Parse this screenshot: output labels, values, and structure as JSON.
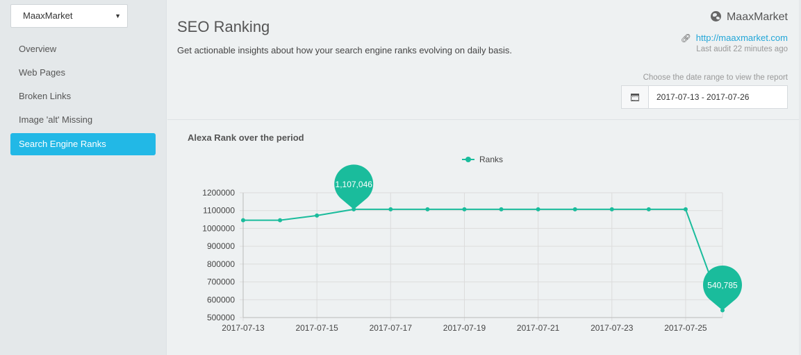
{
  "sidebar": {
    "site_select": "MaaxMarket",
    "items": [
      {
        "label": "Overview"
      },
      {
        "label": "Web Pages"
      },
      {
        "label": "Broken Links"
      },
      {
        "label": "Image 'alt' Missing"
      },
      {
        "label": "Search Engine Ranks",
        "active": true
      }
    ]
  },
  "header": {
    "title": "SEO Ranking",
    "subtitle": "Get actionable insights about how your search engine ranks evolving on daily basis.",
    "site_name": "MaaxMarket",
    "site_url": "http://maaxmarket.com",
    "last_audit": "Last audit 22 minutes ago",
    "range_label": "Choose the date range to view the report",
    "date_range": "2017-07-13 - 2017-07-26"
  },
  "icons": {
    "globe": "globe-icon",
    "link": "link-icon",
    "calendar": "calendar-icon",
    "dropdown": "caret-down-icon"
  },
  "colors": {
    "accent": "#22b8e6",
    "series": "#1abc9c",
    "link": "#22a6d8"
  },
  "chart_title": "Alexa Rank over the period",
  "chart_data": {
    "type": "line",
    "title": "",
    "xlabel": "",
    "ylabel": "",
    "ylim": [
      500000,
      1200000
    ],
    "y_ticks": [
      "1200000",
      "1100000",
      "1000000",
      "900000",
      "800000",
      "700000",
      "600000",
      "500000"
    ],
    "x_tick_labels": [
      "2017-07-13",
      "2017-07-15",
      "2017-07-17",
      "2017-07-19",
      "2017-07-21",
      "2017-07-23",
      "2017-07-25"
    ],
    "x": [
      "2017-07-13",
      "2017-07-14",
      "2017-07-15",
      "2017-07-16",
      "2017-07-17",
      "2017-07-18",
      "2017-07-19",
      "2017-07-20",
      "2017-07-21",
      "2017-07-22",
      "2017-07-23",
      "2017-07-24",
      "2017-07-25",
      "2017-07-26"
    ],
    "grid": true,
    "legend_position": "top-center",
    "series": [
      {
        "name": "Ranks",
        "values": [
          1046000,
          1046000,
          1072000,
          1107046,
          1107046,
          1107046,
          1107046,
          1107046,
          1107046,
          1107046,
          1107046,
          1107046,
          1107046,
          540785
        ]
      }
    ],
    "annotations": [
      {
        "x": "2017-07-16",
        "value": 1107046,
        "label": "1,107,046"
      },
      {
        "x": "2017-07-26",
        "value": 540785,
        "label": "540,785"
      }
    ]
  }
}
